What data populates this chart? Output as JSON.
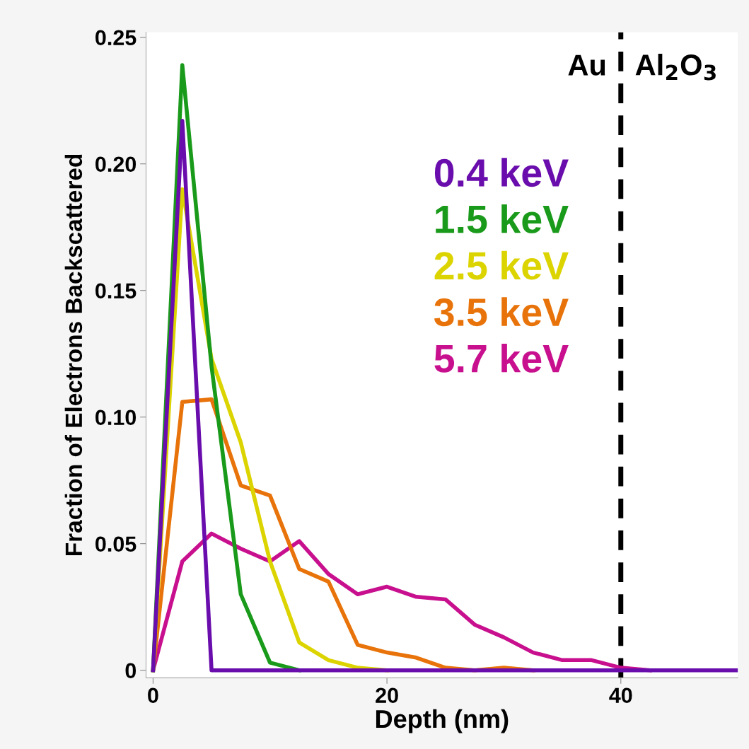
{
  "chart_data": {
    "type": "line",
    "xlabel": "Depth (nm)",
    "ylabel": "Fraction of Electrons Backscattered",
    "x": [
      0,
      2.5,
      5,
      7.5,
      10,
      12.5,
      15,
      17.5,
      20,
      22.5,
      25,
      27.5,
      30,
      32.5,
      35,
      37.5,
      40,
      42.5,
      45,
      47.5,
      50
    ],
    "series": [
      {
        "name": "0.4 keV",
        "color": "#6a0dad",
        "values": [
          0,
          0.217,
          0,
          0,
          0,
          0,
          0,
          0,
          0,
          0,
          0,
          0,
          0,
          0,
          0,
          0,
          0,
          0,
          0,
          0,
          0
        ]
      },
      {
        "name": "1.5 keV",
        "color": "#1a9a1a",
        "values": [
          0,
          0.239,
          0.12,
          0.03,
          0.003,
          0,
          null,
          null,
          null,
          null,
          null,
          null,
          null,
          null,
          null,
          null,
          null,
          null,
          null,
          null,
          null
        ]
      },
      {
        "name": "2.5 keV",
        "color": "#dcd400",
        "values": [
          0,
          0.19,
          0.123,
          0.09,
          0.043,
          0.011,
          0.004,
          0.001,
          0,
          null,
          null,
          null,
          null,
          null,
          null,
          null,
          null,
          null,
          null,
          null,
          null
        ]
      },
      {
        "name": "3.5 keV",
        "color": "#e8730a",
        "values": [
          0,
          0.106,
          0.107,
          0.073,
          0.069,
          0.04,
          0.035,
          0.01,
          0.007,
          0.005,
          0.001,
          0,
          0.001,
          0,
          null,
          null,
          null,
          null,
          null,
          null,
          null
        ]
      },
      {
        "name": "5.7 keV",
        "color": "#c8108f",
        "values": [
          0,
          0.043,
          0.054,
          0.048,
          0.043,
          0.051,
          0.038,
          0.03,
          0.033,
          0.029,
          0.028,
          0.018,
          0.013,
          0.007,
          0.004,
          0.004,
          0.001,
          0,
          null,
          null,
          null
        ]
      }
    ],
    "xlim": [
      -0.6,
      50
    ],
    "xticks": [
      0,
      20,
      40
    ],
    "ylim": [
      -0.003,
      0.252
    ],
    "yticks": [
      {
        "value": 0,
        "label": "0"
      },
      {
        "value": 0.05,
        "label": "0.05"
      },
      {
        "value": 0.1,
        "label": "0.10"
      },
      {
        "value": 0.15,
        "label": "0.15"
      },
      {
        "value": 0.2,
        "label": "0.20"
      },
      {
        "value": 0.25,
        "label": "0.25"
      }
    ],
    "ref_lines": [
      {
        "axis": "x",
        "value": 40,
        "color": "#000000",
        "line_style": "dashed"
      }
    ],
    "annotations": [
      "Au",
      "Al$_{2}$O$_{3}$"
    ],
    "legend": "top right",
    "grid": false,
    "marker": "none",
    "line_style": "solid"
  }
}
